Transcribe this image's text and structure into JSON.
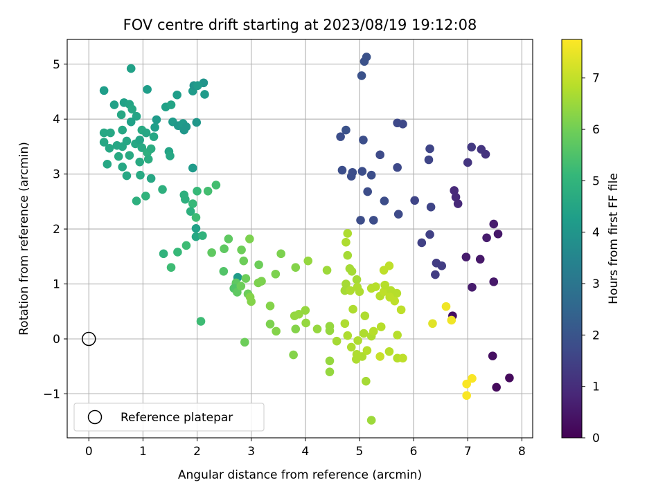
{
  "chart_data": {
    "type": "scatter",
    "title": "FOV centre drift starting at 2023/08/19 19:12:08",
    "xlabel": "Angular distance from reference (arcmin)",
    "ylabel": "Rotation from reference (arcmin)",
    "xlim": [
      -0.4,
      8.2
    ],
    "ylim": [
      -1.8,
      5.45
    ],
    "xticks": [
      0,
      1,
      2,
      3,
      4,
      5,
      6,
      7,
      8
    ],
    "yticks": [
      -1,
      0,
      1,
      2,
      3,
      4,
      5
    ],
    "grid": true,
    "legend": {
      "placement": "lower-left",
      "entries": [
        {
          "label": "Reference platepar",
          "marker": "open-circle"
        }
      ]
    },
    "reference_point": {
      "x": 0,
      "y": 0
    },
    "colorbar": {
      "label": "Hours from first FF file",
      "range": [
        0,
        7.75
      ],
      "ticks": [
        0,
        1,
        2,
        3,
        4,
        5,
        6,
        7
      ],
      "colormap": "viridis",
      "stops": [
        "#440154",
        "#482878",
        "#3e4a89",
        "#31688e",
        "#26828e",
        "#1f9e89",
        "#35b779",
        "#6ece58",
        "#b5de2b",
        "#fde725"
      ]
    },
    "points": [
      [
        5.13,
        5.13,
        1.95
      ],
      [
        5.09,
        5.05,
        1.95
      ],
      [
        5.04,
        4.79,
        1.95
      ],
      [
        4.75,
        3.8,
        1.95
      ],
      [
        4.65,
        3.68,
        1.85
      ],
      [
        5.07,
        3.62,
        1.85
      ],
      [
        5.38,
        3.35,
        1.75
      ],
      [
        4.68,
        3.07,
        1.85
      ],
      [
        4.87,
        3.03,
        1.85
      ],
      [
        5.05,
        3.05,
        1.85
      ],
      [
        5.22,
        2.98,
        1.85
      ],
      [
        4.85,
        2.96,
        1.85
      ],
      [
        5.15,
        2.68,
        1.8
      ],
      [
        5.46,
        2.51,
        1.8
      ],
      [
        5.72,
        2.27,
        1.75
      ],
      [
        5.02,
        2.16,
        1.8
      ],
      [
        5.26,
        2.16,
        1.8
      ],
      [
        5.7,
        3.93,
        1.7
      ],
      [
        5.8,
        3.91,
        1.7
      ],
      [
        5.7,
        3.12,
        1.7
      ],
      [
        6.3,
        3.46,
        1.6
      ],
      [
        6.28,
        3.26,
        1.6
      ],
      [
        6.02,
        2.52,
        1.6
      ],
      [
        6.32,
        2.4,
        1.6
      ],
      [
        6.3,
        1.9,
        1.5
      ],
      [
        6.15,
        1.75,
        1.5
      ],
      [
        6.42,
        1.38,
        1.4
      ],
      [
        6.52,
        1.33,
        1.4
      ],
      [
        6.4,
        1.17,
        1.4
      ],
      [
        7.07,
        3.49,
        1.3
      ],
      [
        7.25,
        3.45,
        1.2
      ],
      [
        7.33,
        3.36,
        1.15
      ],
      [
        7.0,
        3.21,
        1.2
      ],
      [
        6.75,
        2.7,
        0.9
      ],
      [
        6.78,
        2.58,
        0.9
      ],
      [
        6.82,
        2.46,
        0.9
      ],
      [
        7.48,
        2.09,
        0.6
      ],
      [
        7.56,
        1.91,
        0.5
      ],
      [
        7.35,
        1.84,
        0.6
      ],
      [
        6.97,
        1.49,
        0.6
      ],
      [
        7.23,
        1.45,
        0.5
      ],
      [
        7.08,
        0.94,
        0.6
      ],
      [
        7.48,
        1.04,
        0.5
      ],
      [
        6.72,
        0.42,
        0.3
      ],
      [
        7.46,
        -0.31,
        0.3
      ],
      [
        7.53,
        -0.88,
        0.2
      ],
      [
        7.77,
        -0.71,
        0.2
      ],
      [
        0.28,
        4.52,
        4.3
      ],
      [
        0.47,
        4.26,
        4.4
      ],
      [
        0.65,
        4.3,
        4.4
      ],
      [
        0.6,
        4.08,
        4.6
      ],
      [
        0.75,
        4.27,
        4.5
      ],
      [
        0.8,
        4.18,
        4.6
      ],
      [
        0.88,
        4.05,
        4.5
      ],
      [
        0.62,
        3.8,
        4.6
      ],
      [
        0.78,
        3.95,
        4.4
      ],
      [
        0.78,
        4.92,
        4.4
      ],
      [
        1.08,
        4.54,
        4.3
      ],
      [
        1.42,
        4.22,
        4.4
      ],
      [
        1.52,
        4.26,
        4.5
      ],
      [
        1.63,
        4.44,
        4.3
      ],
      [
        1.92,
        4.51,
        4.2
      ],
      [
        1.94,
        4.61,
        4.0
      ],
      [
        2.12,
        4.66,
        4.0
      ],
      [
        2.01,
        4.61,
        4.2
      ],
      [
        2.14,
        4.45,
        4.2
      ],
      [
        1.25,
        3.99,
        4.2
      ],
      [
        1.22,
        3.85,
        4.3
      ],
      [
        1.55,
        3.95,
        4.2
      ],
      [
        1.65,
        3.88,
        4.1
      ],
      [
        1.76,
        3.8,
        4.1
      ],
      [
        1.74,
        3.92,
        4.2
      ],
      [
        1.8,
        3.86,
        4.1
      ],
      [
        1.99,
        3.94,
        4.1
      ],
      [
        0.28,
        3.75,
        4.6
      ],
      [
        0.4,
        3.75,
        4.6
      ],
      [
        0.28,
        3.58,
        4.6
      ],
      [
        0.38,
        3.47,
        4.6
      ],
      [
        0.55,
        3.32,
        4.7
      ],
      [
        0.52,
        3.52,
        4.6
      ],
      [
        0.62,
        3.5,
        4.6
      ],
      [
        0.7,
        3.6,
        4.6
      ],
      [
        0.75,
        3.34,
        4.7
      ],
      [
        0.86,
        3.55,
        4.6
      ],
      [
        0.94,
        3.62,
        4.5
      ],
      [
        0.98,
        3.48,
        4.7
      ],
      [
        1.08,
        3.39,
        4.9
      ],
      [
        1.15,
        3.46,
        4.8
      ],
      [
        1.2,
        3.68,
        4.6
      ],
      [
        0.98,
        3.8,
        4.7
      ],
      [
        1.06,
        3.75,
        4.6
      ],
      [
        0.34,
        3.18,
        4.6
      ],
      [
        0.62,
        3.13,
        4.6
      ],
      [
        0.7,
        2.97,
        4.6
      ],
      [
        0.94,
        3.22,
        4.7
      ],
      [
        1.1,
        3.27,
        4.8
      ],
      [
        0.95,
        2.98,
        4.7
      ],
      [
        1.15,
        2.92,
        4.6
      ],
      [
        0.88,
        2.51,
        4.9
      ],
      [
        1.05,
        2.6,
        5.0
      ],
      [
        1.36,
        2.72,
        4.9
      ],
      [
        1.48,
        3.41,
        4.5
      ],
      [
        1.5,
        3.33,
        4.6
      ],
      [
        1.92,
        3.11,
        4.2
      ],
      [
        1.76,
        2.62,
        4.9
      ],
      [
        1.78,
        2.54,
        4.9
      ],
      [
        1.92,
        2.46,
        5.2
      ],
      [
        1.88,
        2.32,
        4.9
      ],
      [
        2.0,
        2.69,
        5.2
      ],
      [
        2.2,
        2.69,
        5.4
      ],
      [
        2.35,
        2.8,
        5.4
      ],
      [
        1.98,
        2.21,
        5.3
      ],
      [
        1.98,
        2.01,
        4.4
      ],
      [
        1.98,
        1.86,
        4.6
      ],
      [
        2.1,
        1.88,
        5.0
      ],
      [
        1.8,
        1.7,
        5.3
      ],
      [
        1.64,
        1.58,
        5.2
      ],
      [
        1.38,
        1.55,
        5.0
      ],
      [
        1.52,
        1.3,
        5.3
      ],
      [
        2.07,
        0.32,
        5.3
      ],
      [
        2.58,
        1.82,
        5.8
      ],
      [
        2.5,
        1.64,
        5.8
      ],
      [
        2.27,
        1.57,
        5.8
      ],
      [
        2.49,
        1.23,
        5.6
      ],
      [
        2.75,
        1.12,
        4.2
      ],
      [
        2.72,
        1.02,
        5.8
      ],
      [
        2.82,
        1.62,
        6.0
      ],
      [
        2.86,
        1.42,
        6.0
      ],
      [
        2.97,
        1.82,
        6.2
      ],
      [
        3.14,
        1.35,
        6.0
      ],
      [
        2.68,
        0.92,
        5.6
      ],
      [
        2.74,
        0.85,
        5.8
      ],
      [
        2.81,
        0.96,
        6.0
      ],
      [
        2.9,
        1.1,
        6.0
      ],
      [
        2.94,
        0.82,
        6.0
      ],
      [
        3.13,
        1.02,
        6.2
      ],
      [
        3.19,
        1.05,
        6.2
      ],
      [
        2.98,
        0.76,
        6.3
      ],
      [
        3.0,
        0.68,
        6.3
      ],
      [
        2.88,
        -0.06,
        6.0
      ],
      [
        3.45,
        1.18,
        6.2
      ],
      [
        3.55,
        1.55,
        6.2
      ],
      [
        3.35,
        0.6,
        6.3
      ],
      [
        3.35,
        0.27,
        6.2
      ],
      [
        3.46,
        0.14,
        6.3
      ],
      [
        3.82,
        1.3,
        6.3
      ],
      [
        4.05,
        1.42,
        6.5
      ],
      [
        3.8,
        0.42,
        6.5
      ],
      [
        3.88,
        0.45,
        6.5
      ],
      [
        4.0,
        0.52,
        6.5
      ],
      [
        3.82,
        0.18,
        6.3
      ],
      [
        4.01,
        0.29,
        6.5
      ],
      [
        3.78,
        -0.29,
        6.3
      ],
      [
        4.22,
        0.18,
        6.5
      ],
      [
        4.45,
        0.23,
        6.5
      ],
      [
        4.45,
        0.15,
        6.5
      ],
      [
        4.4,
        1.25,
        6.6
      ],
      [
        4.45,
        -0.4,
        6.5
      ],
      [
        4.45,
        -0.6,
        6.5
      ],
      [
        4.58,
        -0.04,
        6.7
      ],
      [
        4.78,
        1.92,
        6.8
      ],
      [
        4.75,
        1.76,
        6.8
      ],
      [
        4.78,
        1.52,
        6.7
      ],
      [
        4.82,
        1.28,
        6.7
      ],
      [
        4.86,
        1.23,
        6.7
      ],
      [
        4.95,
        1.08,
        6.7
      ],
      [
        4.75,
        1.0,
        6.7
      ],
      [
        4.73,
        0.88,
        6.7
      ],
      [
        4.83,
        0.88,
        6.8
      ],
      [
        4.96,
        0.94,
        6.8
      ],
      [
        5.0,
        0.86,
        6.8
      ],
      [
        4.88,
        0.54,
        6.8
      ],
      [
        5.1,
        0.42,
        6.8
      ],
      [
        4.73,
        0.28,
        6.8
      ],
      [
        4.78,
        0.06,
        6.8
      ],
      [
        4.85,
        -0.15,
        6.8
      ],
      [
        4.95,
        -0.28,
        6.8
      ],
      [
        4.94,
        -0.37,
        6.8
      ],
      [
        5.05,
        -0.32,
        6.8
      ],
      [
        5.08,
        0.1,
        6.8
      ],
      [
        4.97,
        -0.03,
        6.8
      ],
      [
        5.22,
        0.05,
        6.8
      ],
      [
        5.14,
        -0.21,
        6.9
      ],
      [
        5.26,
        0.14,
        6.9
      ],
      [
        5.12,
        -0.77,
        6.7
      ],
      [
        5.22,
        -1.48,
        6.6
      ],
      [
        5.4,
        0.22,
        6.9
      ],
      [
        5.22,
        0.92,
        6.9
      ],
      [
        5.3,
        0.95,
        6.9
      ],
      [
        5.38,
        0.78,
        6.9
      ],
      [
        5.45,
        0.86,
        7.0
      ],
      [
        5.45,
        1.25,
        7.0
      ],
      [
        5.55,
        1.33,
        7.0
      ],
      [
        5.47,
        0.98,
        6.9
      ],
      [
        5.58,
        0.88,
        6.9
      ],
      [
        5.69,
        0.83,
        6.9
      ],
      [
        5.56,
        0.76,
        7.0
      ],
      [
        5.65,
        0.69,
        7.0
      ],
      [
        5.77,
        0.53,
        7.0
      ],
      [
        5.7,
        0.07,
        6.9
      ],
      [
        5.55,
        -0.23,
        6.9
      ],
      [
        5.7,
        -0.35,
        6.9
      ],
      [
        5.8,
        -0.35,
        7.0
      ],
      [
        5.38,
        -0.32,
        7.1
      ],
      [
        6.35,
        0.28,
        7.4
      ],
      [
        6.6,
        0.59,
        7.6
      ],
      [
        6.7,
        0.34,
        7.6
      ],
      [
        7.08,
        -0.72,
        7.7
      ],
      [
        6.98,
        -0.82,
        7.7
      ],
      [
        6.98,
        -1.03,
        7.7
      ]
    ]
  }
}
